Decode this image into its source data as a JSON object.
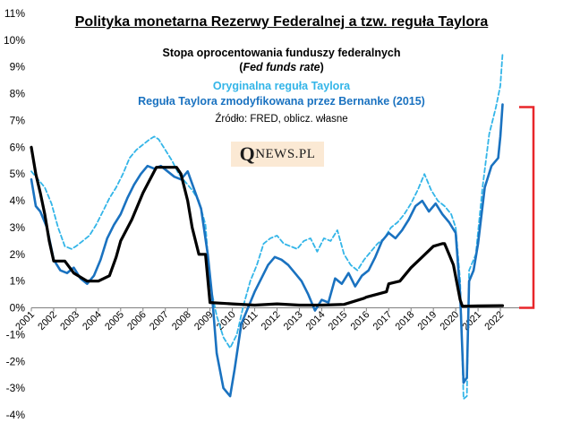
{
  "title": "Polityka monetarna Rezerwy Federalnej a tzw. reguła Taylora",
  "legend": {
    "line1": "Stopa oprocentowania funduszy federalnych",
    "line1b": "Fed funds rate",
    "line2": "Oryginalna reguła Taylora",
    "line3": "Reguła Taylora zmodyfikowana przez Bernanke (2015)"
  },
  "source": "Źródło: FRED, oblicz. własne",
  "logo": {
    "q": "Q",
    "rest": "NEWS.PL"
  },
  "colors": {
    "fed": "#000000",
    "taylor": "#33b5e8",
    "bernanke": "#1a72c0",
    "bracket": "#e8262a"
  },
  "chart_data": {
    "type": "line",
    "title": "Polityka monetarna Rezerwy Federalnej a tzw. reguła Taylora",
    "ylim": [
      -4,
      11
    ],
    "yticks": [
      -4,
      -3,
      -2,
      -1,
      0,
      1,
      2,
      3,
      4,
      5,
      6,
      7,
      8,
      9,
      10,
      11
    ],
    "ytick_labels": [
      "-4%",
      "-3%",
      "-2%",
      "-1%",
      "0%",
      "1%",
      "2%",
      "3%",
      "4%",
      "5%",
      "6%",
      "7%",
      "8%",
      "9%",
      "10%",
      "11%"
    ],
    "xlim": [
      2001,
      2023
    ],
    "xticks": [
      2001,
      2002,
      2003,
      2004,
      2005,
      2006,
      2007,
      2008,
      2009,
      2010,
      2011,
      2012,
      2013,
      2014,
      2015,
      2016,
      2017,
      2018,
      2019,
      2020,
      2021,
      2022
    ],
    "xtick_labels": [
      "2001",
      "2002",
      "2003",
      "2004",
      "2005",
      "2006",
      "2007",
      "2008",
      "2009",
      "2010",
      "2011",
      "2012",
      "2013",
      "2014",
      "2015",
      "2016",
      "2017",
      "2018",
      "2019",
      "2020",
      "2021",
      "2022"
    ],
    "series": [
      {
        "name": "Stopa oprocentowania funduszy federalnych (Fed funds rate)",
        "style": "solid-thick",
        "x": [
          2001.0,
          2001.2,
          2001.4,
          2001.6,
          2001.8,
          2002.0,
          2002.5,
          2002.9,
          2003.0,
          2003.5,
          2004.0,
          2004.5,
          2004.8,
          2005.0,
          2005.5,
          2006.0,
          2006.5,
          2006.6,
          2007.0,
          2007.5,
          2007.7,
          2008.0,
          2008.2,
          2008.5,
          2008.8,
          2009.0,
          2010.0,
          2011.0,
          2012.0,
          2013.0,
          2014.0,
          2015.0,
          2015.9,
          2016.0,
          2016.9,
          2017.0,
          2017.5,
          2018.0,
          2018.5,
          2019.0,
          2019.4,
          2019.5,
          2019.7,
          2019.9,
          2020.2,
          2020.3,
          2021.0,
          2022.0,
          2022.1
        ],
        "y": [
          6.0,
          5.0,
          4.3,
          3.5,
          2.5,
          1.75,
          1.75,
          1.3,
          1.25,
          1.0,
          1.0,
          1.2,
          1.9,
          2.5,
          3.3,
          4.3,
          5.1,
          5.25,
          5.25,
          5.25,
          5.0,
          4.0,
          3.0,
          2.0,
          2.0,
          0.2,
          0.15,
          0.1,
          0.15,
          0.1,
          0.1,
          0.13,
          0.36,
          0.4,
          0.6,
          0.9,
          1.0,
          1.5,
          1.9,
          2.3,
          2.4,
          2.4,
          2.0,
          1.6,
          0.3,
          0.06,
          0.07,
          0.08,
          0.08
        ]
      },
      {
        "name": "Oryginalna reguła Taylora",
        "style": "dashed",
        "x": [
          2001.0,
          2001.3,
          2001.6,
          2001.9,
          2002.2,
          2002.5,
          2002.8,
          2003.0,
          2003.3,
          2003.6,
          2003.9,
          2004.2,
          2004.5,
          2004.8,
          2005.1,
          2005.4,
          2005.7,
          2006.0,
          2006.3,
          2006.5,
          2006.7,
          2007.0,
          2007.3,
          2007.6,
          2007.9,
          2008.2,
          2008.5,
          2008.8,
          2009.0,
          2009.3,
          2009.6,
          2009.9,
          2010.2,
          2010.5,
          2010.8,
          2011.1,
          2011.4,
          2011.7,
          2012.0,
          2012.3,
          2012.6,
          2012.9,
          2013.2,
          2013.5,
          2013.8,
          2014.1,
          2014.4,
          2014.7,
          2015.0,
          2015.3,
          2015.6,
          2015.9,
          2016.2,
          2016.5,
          2016.8,
          2017.1,
          2017.4,
          2017.7,
          2018.0,
          2018.3,
          2018.6,
          2018.9,
          2019.2,
          2019.5,
          2019.8,
          2020.0,
          2020.2,
          2020.35,
          2020.5,
          2020.6,
          2020.9,
          2021.2,
          2021.5,
          2021.8,
          2022.0,
          2022.1
        ],
        "y": [
          5.1,
          4.8,
          4.5,
          3.9,
          3.0,
          2.3,
          2.2,
          2.3,
          2.5,
          2.7,
          3.1,
          3.6,
          4.1,
          4.5,
          5.0,
          5.6,
          5.9,
          6.1,
          6.3,
          6.4,
          6.3,
          5.9,
          5.5,
          5.0,
          4.7,
          4.4,
          4.0,
          3.1,
          0.9,
          -0.3,
          -1.1,
          -1.5,
          -1.0,
          0.1,
          1.0,
          1.6,
          2.4,
          2.6,
          2.7,
          2.4,
          2.3,
          2.2,
          2.5,
          2.6,
          2.1,
          2.6,
          2.5,
          2.9,
          2.0,
          1.6,
          1.4,
          1.8,
          2.1,
          2.4,
          2.6,
          3.0,
          3.2,
          3.5,
          3.9,
          4.4,
          5.0,
          4.4,
          4.0,
          3.8,
          3.5,
          3.0,
          1.0,
          -3.4,
          -3.3,
          1.4,
          2.0,
          4.5,
          6.5,
          7.5,
          8.3,
          9.5
        ]
      },
      {
        "name": "Reguła Taylora zmodyfikowana przez Bernanke (2015)",
        "style": "solid",
        "x": [
          2001.0,
          2001.2,
          2001.4,
          2001.7,
          2002.0,
          2002.3,
          2002.6,
          2002.9,
          2003.2,
          2003.5,
          2003.8,
          2004.1,
          2004.4,
          2004.7,
          2005.0,
          2005.3,
          2005.6,
          2005.9,
          2006.2,
          2006.5,
          2006.8,
          2007.1,
          2007.4,
          2007.7,
          2008.0,
          2008.3,
          2008.6,
          2008.9,
          2009.1,
          2009.3,
          2009.6,
          2009.9,
          2010.1,
          2010.4,
          2010.7,
          2011.0,
          2011.3,
          2011.6,
          2011.9,
          2012.2,
          2012.5,
          2012.8,
          2013.1,
          2013.4,
          2013.7,
          2014.0,
          2014.3,
          2014.6,
          2014.9,
          2015.2,
          2015.5,
          2015.8,
          2016.1,
          2016.4,
          2016.7,
          2017.0,
          2017.3,
          2017.6,
          2017.9,
          2018.2,
          2018.5,
          2018.8,
          2019.1,
          2019.4,
          2019.7,
          2020.0,
          2020.2,
          2020.35,
          2020.5,
          2020.6,
          2020.8,
          2021.0,
          2021.3,
          2021.6,
          2021.9,
          2022.0,
          2022.1
        ],
        "y": [
          4.8,
          3.8,
          3.6,
          3.0,
          1.8,
          1.4,
          1.3,
          1.5,
          1.1,
          0.9,
          1.2,
          1.8,
          2.6,
          3.1,
          3.5,
          4.1,
          4.6,
          5.0,
          5.3,
          5.2,
          5.3,
          5.1,
          4.9,
          4.8,
          5.1,
          4.4,
          3.7,
          2.0,
          0.4,
          -1.7,
          -3.0,
          -3.3,
          -2.3,
          -0.6,
          0.0,
          0.6,
          1.1,
          1.6,
          1.9,
          1.8,
          1.6,
          1.3,
          1.0,
          0.5,
          -0.1,
          0.3,
          0.2,
          1.1,
          0.9,
          1.3,
          0.8,
          1.2,
          1.4,
          1.9,
          2.5,
          2.8,
          2.6,
          2.9,
          3.3,
          3.8,
          4.0,
          3.6,
          3.9,
          3.5,
          3.2,
          2.8,
          0.5,
          -2.8,
          -2.6,
          1.0,
          1.4,
          2.4,
          4.5,
          5.3,
          5.6,
          6.4,
          7.6
        ]
      }
    ],
    "annotation": "red bracket spanning 0% to 7.5%"
  }
}
